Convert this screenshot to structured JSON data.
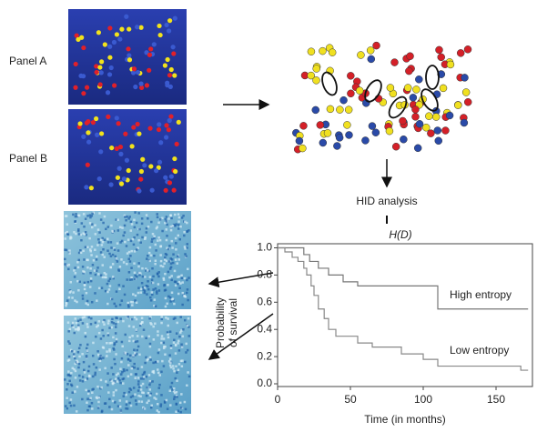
{
  "panels": {
    "a": "Panel A",
    "b": "Panel B"
  },
  "analysis_label": "HID analysis",
  "measure_label": "H(D)",
  "chart_data": {
    "type": "line",
    "step": true,
    "x_label": "Time (in months)",
    "y_label": [
      "Probability",
      "of survival"
    ],
    "series": [
      {
        "name": "High entropy",
        "color": "#777777",
        "x": [
          0,
          18,
          18,
          22,
          22,
          28,
          28,
          35,
          35,
          45,
          45,
          55,
          55,
          110,
          110,
          172
        ],
        "values": [
          1,
          1,
          0.95,
          0.95,
          0.9,
          0.9,
          0.85,
          0.85,
          0.8,
          0.8,
          0.75,
          0.75,
          0.72,
          0.72,
          0.55,
          0.55
        ]
      },
      {
        "name": "Low entropy",
        "color": "#888888",
        "x": [
          0,
          5,
          5,
          10,
          10,
          14,
          14,
          18,
          18,
          20,
          20,
          23,
          23,
          25,
          25,
          28,
          28,
          32,
          32,
          35,
          35,
          40,
          40,
          55,
          55,
          65,
          65,
          85,
          85,
          100,
          100,
          110,
          110,
          167,
          167,
          172
        ],
        "values": [
          1,
          1,
          0.97,
          0.97,
          0.93,
          0.93,
          0.9,
          0.9,
          0.85,
          0.85,
          0.8,
          0.8,
          0.72,
          0.72,
          0.65,
          0.65,
          0.55,
          0.55,
          0.48,
          0.48,
          0.4,
          0.4,
          0.35,
          0.35,
          0.3,
          0.3,
          0.27,
          0.27,
          0.22,
          0.22,
          0.18,
          0.18,
          0.13,
          0.13,
          0.1,
          0.1
        ]
      }
    ],
    "xlim": [
      0,
      175
    ],
    "xticks": [
      0,
      50,
      100,
      150
    ],
    "ylim": [
      -0.02,
      1.03
    ],
    "yticks": [
      {
        "value": 0,
        "label": "0.0"
      },
      0.2,
      0.4,
      0.6,
      0.8,
      {
        "value": 1,
        "label": "1.0"
      }
    ]
  }
}
